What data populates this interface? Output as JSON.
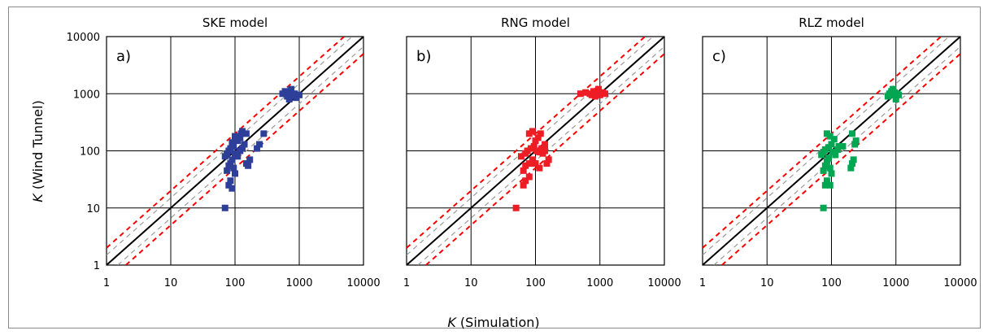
{
  "figure": {
    "xlabel_symbol": "K",
    "xlabel_text": " (Simulation)",
    "ylabel_symbol": "K",
    "ylabel_text": " (Wind Tunnel)"
  },
  "reference_lines": {
    "identity_color": "#000000",
    "factor2_color": "#ff0000",
    "factor2_style": "dashed",
    "factor": 2
  },
  "chart_data": [
    {
      "type": "scatter",
      "panel": "a)",
      "title": "SKE model",
      "xscale": "log",
      "yscale": "log",
      "xlim": [
        1,
        10000
      ],
      "ylim": [
        1,
        10000
      ],
      "xticks": [
        "1",
        "10",
        "100",
        "1000",
        "10000"
      ],
      "yticks": [
        "1",
        "10",
        "100",
        "1000",
        "10000"
      ],
      "grid": true,
      "color": "#2e3f9a",
      "points": [
        [
          70,
          10
        ],
        [
          80,
          25
        ],
        [
          85,
          30
        ],
        [
          90,
          22
        ],
        [
          75,
          45
        ],
        [
          80,
          55
        ],
        [
          85,
          60
        ],
        [
          95,
          50
        ],
        [
          100,
          40
        ],
        [
          90,
          70
        ],
        [
          70,
          80
        ],
        [
          75,
          90
        ],
        [
          80,
          100
        ],
        [
          85,
          110
        ],
        [
          95,
          120
        ],
        [
          100,
          90
        ],
        [
          110,
          80
        ],
        [
          120,
          100
        ],
        [
          130,
          110
        ],
        [
          110,
          150
        ],
        [
          120,
          170
        ],
        [
          125,
          200
        ],
        [
          100,
          180
        ],
        [
          90,
          140
        ],
        [
          150,
          60
        ],
        [
          160,
          55
        ],
        [
          170,
          70
        ],
        [
          140,
          130
        ],
        [
          220,
          110
        ],
        [
          240,
          130
        ],
        [
          280,
          200
        ],
        [
          150,
          200
        ],
        [
          130,
          220
        ],
        [
          550,
          1000
        ],
        [
          600,
          1100
        ],
        [
          650,
          900
        ],
        [
          700,
          1050
        ],
        [
          750,
          1200
        ],
        [
          800,
          950
        ],
        [
          850,
          1000
        ],
        [
          900,
          850
        ],
        [
          700,
          800
        ],
        [
          1000,
          950
        ]
      ]
    },
    {
      "type": "scatter",
      "panel": "b)",
      "title": "RNG model",
      "xscale": "log",
      "yscale": "log",
      "xlim": [
        1,
        10000
      ],
      "ylim": [
        1,
        10000
      ],
      "xticks": [
        "1",
        "10",
        "100",
        "1000",
        "10000"
      ],
      "yticks": [
        "1",
        "10",
        "100",
        "1000",
        "10000"
      ],
      "grid": true,
      "color": "#ee1c25",
      "points": [
        [
          50,
          10
        ],
        [
          65,
          25
        ],
        [
          70,
          30
        ],
        [
          80,
          35
        ],
        [
          65,
          45
        ],
        [
          70,
          55
        ],
        [
          80,
          60
        ],
        [
          90,
          70
        ],
        [
          60,
          80
        ],
        [
          70,
          90
        ],
        [
          75,
          100
        ],
        [
          85,
          110
        ],
        [
          95,
          120
        ],
        [
          105,
          100
        ],
        [
          115,
          95
        ],
        [
          125,
          110
        ],
        [
          130,
          90
        ],
        [
          140,
          100
        ],
        [
          100,
          150
        ],
        [
          110,
          170
        ],
        [
          120,
          200
        ],
        [
          90,
          220
        ],
        [
          80,
          200
        ],
        [
          150,
          60
        ],
        [
          160,
          70
        ],
        [
          140,
          130
        ],
        [
          100,
          60
        ],
        [
          115,
          50
        ],
        [
          500,
          1000
        ],
        [
          600,
          1050
        ],
        [
          700,
          1000
        ],
        [
          800,
          1100
        ],
        [
          900,
          1000
        ],
        [
          1000,
          950
        ],
        [
          1100,
          1050
        ],
        [
          1200,
          1000
        ],
        [
          850,
          900
        ],
        [
          950,
          1200
        ],
        [
          750,
          950
        ]
      ]
    },
    {
      "type": "scatter",
      "panel": "c)",
      "title": "RLZ model",
      "xscale": "log",
      "yscale": "log",
      "xlim": [
        1,
        10000
      ],
      "ylim": [
        1,
        10000
      ],
      "xticks": [
        "1",
        "10",
        "100",
        "1000",
        "10000"
      ],
      "yticks": [
        "1",
        "10",
        "100",
        "1000",
        "10000"
      ],
      "grid": true,
      "color": "#00a651",
      "points": [
        [
          75,
          10
        ],
        [
          80,
          25
        ],
        [
          85,
          30
        ],
        [
          95,
          25
        ],
        [
          75,
          45
        ],
        [
          80,
          55
        ],
        [
          85,
          65
        ],
        [
          95,
          50
        ],
        [
          100,
          40
        ],
        [
          90,
          75
        ],
        [
          70,
          85
        ],
        [
          75,
          95
        ],
        [
          80,
          105
        ],
        [
          90,
          115
        ],
        [
          100,
          130
        ],
        [
          105,
          95
        ],
        [
          115,
          85
        ],
        [
          125,
          105
        ],
        [
          130,
          120
        ],
        [
          110,
          160
        ],
        [
          95,
          180
        ],
        [
          85,
          200
        ],
        [
          200,
          50
        ],
        [
          210,
          60
        ],
        [
          220,
          70
        ],
        [
          230,
          130
        ],
        [
          240,
          150
        ],
        [
          210,
          200
        ],
        [
          150,
          120
        ],
        [
          800,
          1000
        ],
        [
          850,
          1100
        ],
        [
          900,
          950
        ],
        [
          950,
          1050
        ],
        [
          1000,
          900
        ],
        [
          1050,
          1000
        ],
        [
          900,
          1200
        ],
        [
          1000,
          800
        ],
        [
          1100,
          950
        ],
        [
          750,
          900
        ]
      ]
    }
  ]
}
